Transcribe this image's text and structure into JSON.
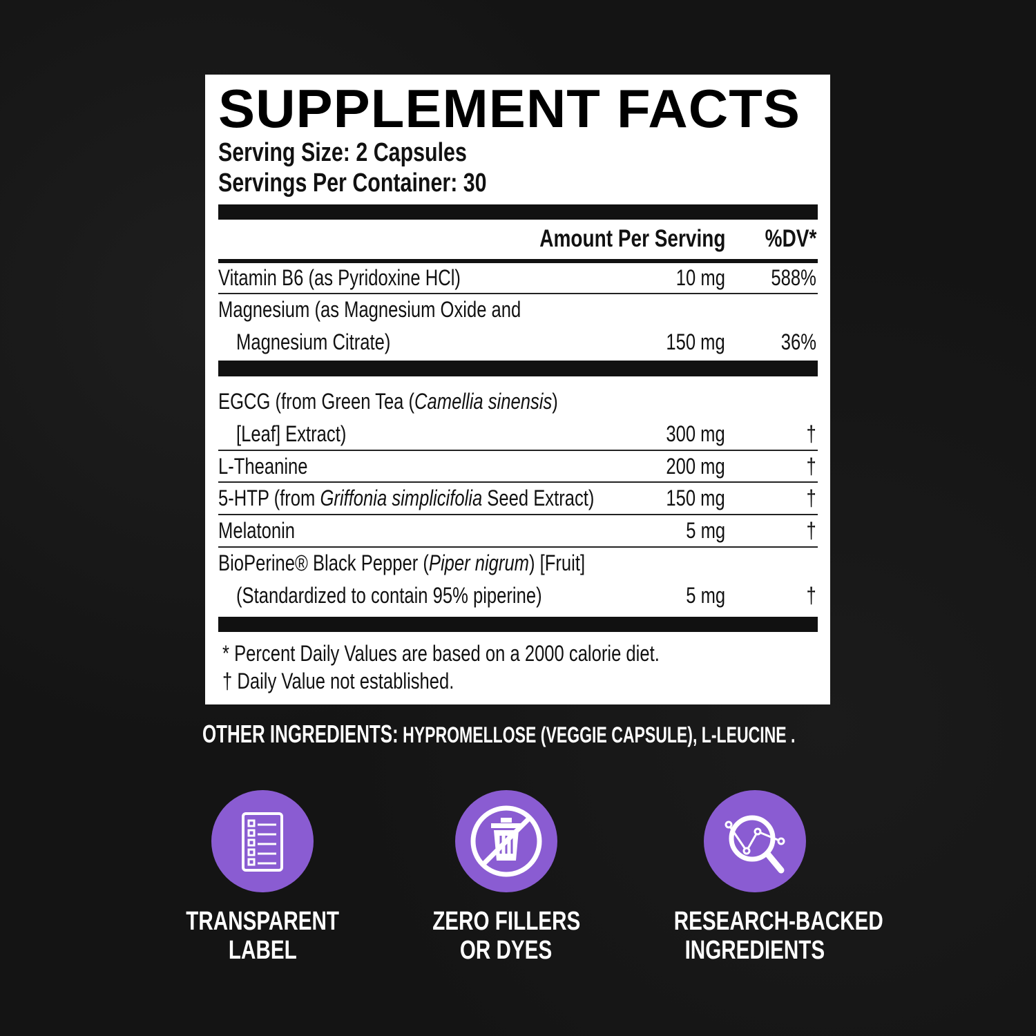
{
  "label": {
    "title": "SUPPLEMENT FACTS",
    "serving_size": "Serving Size: 2 Capsules",
    "servings_per_container": "Servings Per Container: 30",
    "header_amount": "Amount Per Serving",
    "header_dv": "%DV*",
    "vitamins": [
      {
        "name": "Vitamin B6 (as Pyridoxine HCl)",
        "amount": "10 mg",
        "dv": "588%"
      },
      {
        "name": "Magnesium (as Magnesium Oxide and",
        "name2": "Magnesium Citrate)",
        "amount": "150 mg",
        "dv": "36%"
      }
    ],
    "blend": [
      {
        "name_pre": "EGCG (from Green Tea (",
        "name_ital": "Camellia sinensis",
        "name_post": ")",
        "name2": "[Leaf] Extract)",
        "amount": "300 mg",
        "dv": "†"
      },
      {
        "name": "L-Theanine",
        "amount": "200 mg",
        "dv": "†"
      },
      {
        "name_pre": "5-HTP (from ",
        "name_ital": "Griffonia simplicifolia",
        "name_post": " Seed Extract)",
        "amount": "150 mg",
        "dv": "†"
      },
      {
        "name": "Melatonin",
        "amount": "5 mg",
        "dv": "†"
      },
      {
        "name_pre": "BioPerine® Black Pepper (",
        "name_ital": "Piper nigrum",
        "name_post": ") [Fruit]",
        "name2": "(Standardized to contain 95% piperine)",
        "amount": "5 mg",
        "dv": "†"
      }
    ],
    "footnote1": "* Percent Daily Values are based on a 2000 calorie diet.",
    "footnote2": "† Daily Value not established."
  },
  "other_ingredients": {
    "label": "OTHER INGREDIENTS:",
    "value": " HYPROMELLOSE (VEGGIE CAPSULE), L-LEUCINE ."
  },
  "features": [
    {
      "icon": "checklist-icon",
      "line1": "TRANSPARENT",
      "line2": "LABEL"
    },
    {
      "icon": "no-trash-icon",
      "line1": "ZERO FILLERS",
      "line2": "OR DYES"
    },
    {
      "icon": "magnifier-chart-icon",
      "line1": "RESEARCH-BACKED",
      "line2": "INGREDIENTS"
    }
  ],
  "colors": {
    "accent": "#8a5cd2",
    "background": "#141414",
    "panel": "#ffffff"
  }
}
